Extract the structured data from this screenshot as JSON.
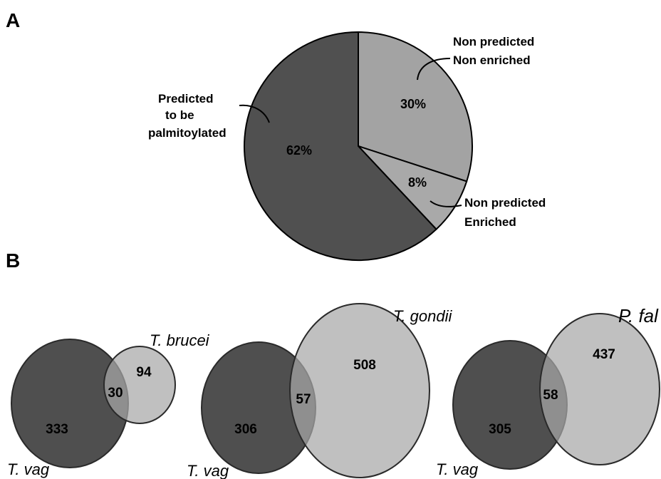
{
  "panels": {
    "a": "A",
    "b": "B"
  },
  "colors": {
    "dark": "#505050",
    "medium": "#a3a3a3",
    "light": "#a9a9a9"
  },
  "chart_data": [
    {
      "type": "pie",
      "panel": "A",
      "slices": [
        {
          "label_lines": [
            "Non predicted",
            "Non enriched"
          ],
          "value": 30,
          "value_label": "30%",
          "color": "#a3a3a3"
        },
        {
          "label_lines": [
            "Non predicted",
            "Enriched"
          ],
          "value": 8,
          "value_label": "8%",
          "color": "#a9a9a9"
        },
        {
          "label_lines": [
            "Predicted",
            "to be",
            "palmitoylated"
          ],
          "value": 62,
          "value_label": "62%",
          "color": "#505050"
        }
      ]
    },
    {
      "type": "venn",
      "panel": "B",
      "sets": [
        "T. vag",
        "T. brucei"
      ],
      "only_a": 333,
      "overlap": 30,
      "only_b": 94,
      "labels": {
        "only_a": "333",
        "overlap": "30",
        "only_b": "94"
      }
    },
    {
      "type": "venn",
      "panel": "B",
      "sets": [
        "T. vag",
        "T. gondii"
      ],
      "only_a": 306,
      "overlap": 57,
      "only_b": 508,
      "labels": {
        "only_a": "306",
        "overlap": "57",
        "only_b": "508"
      }
    },
    {
      "type": "venn",
      "panel": "B",
      "sets": [
        "T. vag",
        "P. fal"
      ],
      "only_a": 305,
      "overlap": 58,
      "only_b": 437,
      "labels": {
        "only_a": "305",
        "overlap": "58",
        "only_b": "437"
      }
    }
  ]
}
